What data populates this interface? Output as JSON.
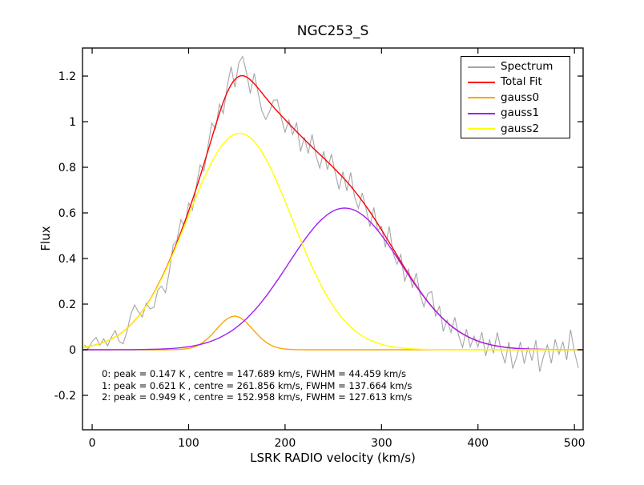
{
  "chart_data": {
    "type": "line",
    "title": "NGC253_S",
    "xlabel": "LSRK RADIO velocity (km/s)",
    "ylabel": "Flux",
    "xlim": [
      -10,
      509
    ],
    "ylim": [
      -0.351,
      1.323
    ],
    "grid": false,
    "xticks": {
      "values": [
        0,
        100,
        200,
        300,
        400,
        500
      ],
      "labels": [
        "0",
        "100",
        "200",
        "300",
        "400",
        "500"
      ]
    },
    "yticks": {
      "values": [
        -0.2,
        0,
        0.2,
        0.4,
        0.6,
        0.8,
        1.0,
        1.2
      ],
      "labels": [
        "-0.2",
        "0",
        "0.2",
        "0.4",
        "0.6",
        "0.8",
        "1",
        "1.2"
      ]
    },
    "legend": {
      "position": "upper-right",
      "items": [
        {
          "label": "Spectrum",
          "color": "#a6a6a6"
        },
        {
          "label": "Total Fit",
          "color": "#ff0000"
        },
        {
          "label": "gauss0",
          "color": "#ffa500"
        },
        {
          "label": "gauss1",
          "color": "#a020f0"
        },
        {
          "label": "gauss2",
          "color": "#ffff00"
        }
      ]
    },
    "gaussian_components": [
      {
        "name": "gauss0",
        "peak_K": 0.147,
        "centre_kms": 147.689,
        "fwhm_kms": 44.459,
        "color": "#ffa500"
      },
      {
        "name": "gauss1",
        "peak_K": 0.621,
        "centre_kms": 261.856,
        "fwhm_kms": 137.664,
        "color": "#a020f0"
      },
      {
        "name": "gauss2",
        "peak_K": 0.949,
        "centre_kms": 152.958,
        "fwhm_kms": 127.613,
        "color": "#ffff00"
      }
    ],
    "total_fit": {
      "name": "Total Fit",
      "color": "#ff0000"
    },
    "spectrum": {
      "name": "Spectrum",
      "color": "#a6a6a6",
      "x_start": -8,
      "x_step": 4,
      "noise_offsets_K": [
        0.01,
        -0.012,
        0.018,
        0.032,
        -0.006,
        0.015,
        -0.022,
        0.008,
        0.028,
        -0.03,
        -0.053,
        -0.015,
        0.045,
        0.07,
        0.02,
        -0.025,
        0.01,
        -0.04,
        -0.063,
        -0.02,
        -0.035,
        -0.1,
        -0.045,
        0.03,
        0.01,
        0.055,
        -0.02,
        0.035,
        -0.045,
        0.01,
        0.05,
        -0.03,
        0.02,
        0.065,
        -0.015,
        0.04,
        -0.05,
        0.025,
        0.08,
        -0.035,
        0.06,
        0.085,
        0.02,
        -0.06,
        0.045,
        -0.02,
        -0.08,
        -0.095,
        -0.04,
        0.03,
        0.05,
        -0.01,
        -0.055,
        0.015,
        -0.03,
        0.04,
        -0.07,
        0.01,
        -0.045,
        0.055,
        -0.02,
        -0.06,
        0.03,
        -0.035,
        0.05,
        -0.015,
        -0.07,
        0.025,
        -0.04,
        0.06,
        -0.025,
        -0.055,
        0.035,
        -0.01,
        -0.065,
        0.045,
        -0.03,
        0.015,
        -0.05,
        0.07,
        -0.02,
        -0.04,
        0.03,
        -0.06,
        0.02,
        -0.035,
        0.055,
        -0.015,
        -0.045,
        0.035,
        0.065,
        -0.025,
        0.04,
        -0.055,
        0.01,
        -0.03,
        0.05,
        -0.02,
        -0.06,
        0.03,
        -0.04,
        0.015,
        -0.025,
        0.045,
        -0.055,
        0.02,
        -0.035,
        0.06,
        -0.015,
        -0.07,
        0.025,
        -0.09,
        -0.04,
        0.03,
        -0.065,
        0.01,
        -0.05,
        0.04,
        -0.098,
        -0.03,
        0.02,
        -0.06,
        0.045,
        -0.02,
        0.035,
        -0.045,
        0.088,
        -0.01,
        -0.08
      ]
    },
    "fit_annotations": [
      "0: peak = 0.147 K , centre = 147.689 km/s, FWHM = 44.459 km/s",
      "1: peak = 0.621 K , centre = 261.856 km/s, FWHM = 137.664 km/s",
      "2: peak = 0.949 K , centre = 152.958 km/s, FWHM = 127.613 km/s"
    ]
  }
}
